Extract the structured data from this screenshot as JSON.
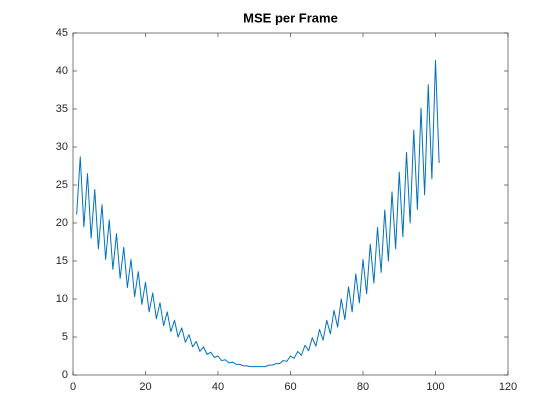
{
  "chart_data": {
    "type": "line",
    "title": "MSE per Frame",
    "x": [
      1,
      2,
      3,
      4,
      5,
      6,
      7,
      8,
      9,
      10,
      11,
      12,
      13,
      14,
      15,
      16,
      17,
      18,
      19,
      20,
      21,
      22,
      23,
      24,
      25,
      26,
      27,
      28,
      29,
      30,
      31,
      32,
      33,
      34,
      35,
      36,
      37,
      38,
      39,
      40,
      41,
      42,
      43,
      44,
      45,
      46,
      47,
      48,
      49,
      50,
      51,
      52,
      53,
      54,
      55,
      56,
      57,
      58,
      59,
      60,
      61,
      62,
      63,
      64,
      65,
      66,
      67,
      68,
      69,
      70,
      71,
      72,
      73,
      74,
      75,
      76,
      77,
      78,
      79,
      80,
      81,
      82,
      83,
      84,
      85,
      86,
      87,
      88,
      89,
      90,
      91,
      92,
      93,
      94,
      95,
      96,
      97,
      98,
      99,
      100,
      101
    ],
    "series": [
      {
        "color": "#0072bd",
        "values": [
          21.1,
          28.7,
          19.5,
          26.5,
          18.0,
          24.4,
          16.6,
          22.4,
          15.2,
          20.4,
          13.9,
          18.6,
          12.7,
          16.8,
          11.5,
          15.2,
          10.3,
          13.6,
          9.3,
          12.2,
          8.3,
          10.8,
          7.4,
          9.5,
          6.5,
          8.3,
          5.7,
          7.2,
          5.0,
          6.2,
          4.3,
          5.3,
          3.7,
          4.4,
          3.1,
          3.7,
          2.7,
          3.0,
          2.3,
          2.5,
          1.9,
          2.0,
          1.6,
          1.7,
          1.4,
          1.4,
          1.2,
          1.2,
          1.1,
          1.1,
          1.1,
          1.1,
          1.1,
          1.3,
          1.3,
          1.5,
          1.5,
          1.9,
          1.8,
          2.5,
          2.2,
          3.1,
          2.6,
          3.9,
          3.2,
          4.9,
          3.8,
          6.0,
          4.6,
          7.2,
          5.4,
          8.5,
          6.3,
          10.0,
          7.3,
          11.6,
          8.3,
          13.3,
          9.5,
          15.2,
          10.7,
          17.2,
          12.1,
          19.4,
          13.5,
          21.7,
          15.0,
          24.1,
          16.6,
          26.7,
          18.2,
          29.3,
          20.0,
          32.2,
          21.8,
          35.1,
          23.7,
          38.2,
          25.8,
          41.4,
          27.9
        ]
      }
    ],
    "xlim": [
      0,
      120
    ],
    "xticks": [
      0,
      20,
      40,
      60,
      80,
      100,
      120
    ],
    "ylim": [
      0,
      45
    ],
    "yticks": [
      0,
      5,
      10,
      15,
      20,
      25,
      30,
      35,
      40,
      45
    ],
    "grid": false
  }
}
